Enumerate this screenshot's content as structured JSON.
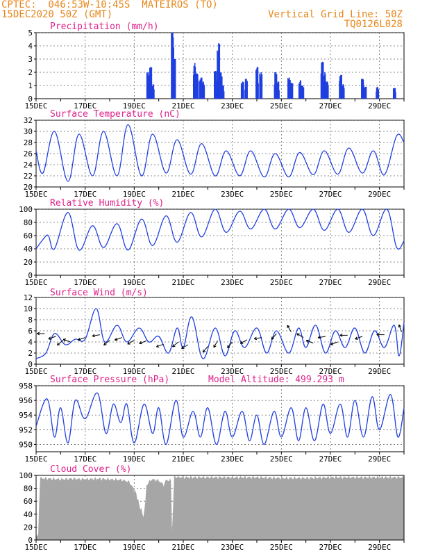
{
  "header": {
    "line1": "CPTEC:  046:53W-10:45S  MATEIROS (TO)",
    "line2": "15DEC2020 50Z (GMT)",
    "grid_note": "Vertical Grid Line: 50Z",
    "code": "TQ0126L028"
  },
  "colors": {
    "header": "#e8861a",
    "title": "#e0208a",
    "series": "#1f3fe0",
    "cloud": "#a6a6a6",
    "wind_arrow": "#000000"
  },
  "x_axis": {
    "tick_labels": [
      "15DEC",
      "17DEC",
      "19DEC",
      "21DEC",
      "23DEC",
      "25DEC",
      "27DEC",
      "29DEC"
    ],
    "range_days": [
      0,
      15
    ]
  },
  "chart_data": [
    {
      "type": "bar",
      "title": "Precipitation (mm/h)",
      "ylim": [
        0,
        5
      ],
      "yticks": [
        0,
        1,
        2,
        3,
        4,
        5
      ],
      "events": [
        {
          "day": 4.55,
          "value": 2.0
        },
        {
          "day": 4.65,
          "value": 2.4
        },
        {
          "day": 4.75,
          "value": 1.1
        },
        {
          "day": 5.55,
          "value": 5.0
        },
        {
          "day": 5.62,
          "value": 3.0
        },
        {
          "day": 6.45,
          "value": 2.7
        },
        {
          "day": 6.55,
          "value": 1.9
        },
        {
          "day": 6.7,
          "value": 1.6
        },
        {
          "day": 6.8,
          "value": 1.3
        },
        {
          "day": 7.3,
          "value": 2.1
        },
        {
          "day": 7.42,
          "value": 4.2
        },
        {
          "day": 7.52,
          "value": 2.0
        },
        {
          "day": 7.6,
          "value": 1.0
        },
        {
          "day": 8.4,
          "value": 1.3
        },
        {
          "day": 8.55,
          "value": 1.5
        },
        {
          "day": 9.0,
          "value": 2.4
        },
        {
          "day": 9.15,
          "value": 2.0
        },
        {
          "day": 9.75,
          "value": 2.0
        },
        {
          "day": 9.85,
          "value": 1.3
        },
        {
          "day": 10.3,
          "value": 1.6
        },
        {
          "day": 10.4,
          "value": 1.2
        },
        {
          "day": 10.75,
          "value": 1.4
        },
        {
          "day": 10.85,
          "value": 1.0
        },
        {
          "day": 11.65,
          "value": 2.8
        },
        {
          "day": 11.75,
          "value": 2.0
        },
        {
          "day": 11.85,
          "value": 1.3
        },
        {
          "day": 12.4,
          "value": 1.8
        },
        {
          "day": 12.5,
          "value": 1.1
        },
        {
          "day": 13.3,
          "value": 1.5
        },
        {
          "day": 13.4,
          "value": 0.9
        },
        {
          "day": 13.9,
          "value": 0.9
        },
        {
          "day": 14.6,
          "value": 0.8
        }
      ]
    },
    {
      "type": "line",
      "title": "Surface Temperature (nC)",
      "ylim": [
        20,
        32
      ],
      "yticks": [
        20,
        22,
        24,
        26,
        28,
        30,
        32
      ],
      "daily": [
        {
          "day": 0.0,
          "value": 26.5
        },
        {
          "day": 0.28,
          "value": 22.5
        },
        {
          "day": 0.75,
          "value": 30.0
        },
        {
          "day": 1.3,
          "value": 21.0
        },
        {
          "day": 1.75,
          "value": 29.5
        },
        {
          "day": 2.3,
          "value": 22.0
        },
        {
          "day": 2.75,
          "value": 30.0
        },
        {
          "day": 3.3,
          "value": 22.0
        },
        {
          "day": 3.75,
          "value": 31.2
        },
        {
          "day": 4.3,
          "value": 22.0
        },
        {
          "day": 4.75,
          "value": 29.5
        },
        {
          "day": 5.3,
          "value": 22.5
        },
        {
          "day": 5.75,
          "value": 28.5
        },
        {
          "day": 6.3,
          "value": 22.3
        },
        {
          "day": 6.75,
          "value": 27.8
        },
        {
          "day": 7.3,
          "value": 22.0
        },
        {
          "day": 7.75,
          "value": 26.5
        },
        {
          "day": 8.3,
          "value": 22.0
        },
        {
          "day": 8.75,
          "value": 26.5
        },
        {
          "day": 9.3,
          "value": 21.8
        },
        {
          "day": 9.75,
          "value": 26.0
        },
        {
          "day": 10.3,
          "value": 21.8
        },
        {
          "day": 10.75,
          "value": 26.2
        },
        {
          "day": 11.3,
          "value": 22.2
        },
        {
          "day": 11.75,
          "value": 26.5
        },
        {
          "day": 12.3,
          "value": 22.3
        },
        {
          "day": 12.75,
          "value": 27.0
        },
        {
          "day": 13.3,
          "value": 22.5
        },
        {
          "day": 13.75,
          "value": 26.5
        },
        {
          "day": 14.2,
          "value": 22.2
        },
        {
          "day": 14.7,
          "value": 29.2
        },
        {
          "day": 15.0,
          "value": 28.0
        }
      ]
    },
    {
      "type": "line",
      "title": "Relative Humidity (%)",
      "ylim": [
        0,
        100
      ],
      "yticks": [
        0,
        20,
        40,
        60,
        80,
        100
      ],
      "daily": [
        {
          "day": 0.0,
          "value": 40
        },
        {
          "day": 0.3,
          "value": 55
        },
        {
          "day": 0.5,
          "value": 60
        },
        {
          "day": 0.75,
          "value": 40
        },
        {
          "day": 1.3,
          "value": 95
        },
        {
          "day": 1.75,
          "value": 38
        },
        {
          "day": 2.3,
          "value": 75
        },
        {
          "day": 2.75,
          "value": 42
        },
        {
          "day": 3.3,
          "value": 78
        },
        {
          "day": 3.75,
          "value": 38
        },
        {
          "day": 4.3,
          "value": 85
        },
        {
          "day": 4.75,
          "value": 45
        },
        {
          "day": 5.3,
          "value": 90
        },
        {
          "day": 5.75,
          "value": 50
        },
        {
          "day": 6.3,
          "value": 95
        },
        {
          "day": 6.75,
          "value": 58
        },
        {
          "day": 7.3,
          "value": 100
        },
        {
          "day": 7.75,
          "value": 65
        },
        {
          "day": 8.3,
          "value": 97
        },
        {
          "day": 8.75,
          "value": 70
        },
        {
          "day": 9.3,
          "value": 100
        },
        {
          "day": 9.75,
          "value": 70
        },
        {
          "day": 10.3,
          "value": 100
        },
        {
          "day": 10.75,
          "value": 72
        },
        {
          "day": 11.3,
          "value": 100
        },
        {
          "day": 11.75,
          "value": 68
        },
        {
          "day": 12.3,
          "value": 100
        },
        {
          "day": 12.75,
          "value": 65
        },
        {
          "day": 13.3,
          "value": 100
        },
        {
          "day": 13.75,
          "value": 60
        },
        {
          "day": 14.3,
          "value": 100
        },
        {
          "day": 14.7,
          "value": 42
        },
        {
          "day": 15.0,
          "value": 52
        }
      ]
    },
    {
      "type": "line",
      "title": "Surface Wind (m/s)",
      "ylim": [
        0,
        12
      ],
      "yticks": [
        0,
        2,
        4,
        6,
        8,
        10,
        12
      ],
      "daily": [
        {
          "day": 0.0,
          "value": 1.0
        },
        {
          "day": 0.4,
          "value": 2.0
        },
        {
          "day": 0.75,
          "value": 5.5
        },
        {
          "day": 1.2,
          "value": 3.5
        },
        {
          "day": 1.6,
          "value": 4.5
        },
        {
          "day": 2.0,
          "value": 4.5
        },
        {
          "day": 2.45,
          "value": 10.0
        },
        {
          "day": 2.8,
          "value": 4.0
        },
        {
          "day": 3.3,
          "value": 7.0
        },
        {
          "day": 3.7,
          "value": 4.0
        },
        {
          "day": 4.2,
          "value": 6.5
        },
        {
          "day": 4.6,
          "value": 4.0
        },
        {
          "day": 5.0,
          "value": 5.0
        },
        {
          "day": 5.4,
          "value": 2.0
        },
        {
          "day": 5.75,
          "value": 6.5
        },
        {
          "day": 6.0,
          "value": 3.0
        },
        {
          "day": 6.35,
          "value": 8.5
        },
        {
          "day": 6.8,
          "value": 1.0
        },
        {
          "day": 7.3,
          "value": 6.5
        },
        {
          "day": 7.7,
          "value": 1.5
        },
        {
          "day": 8.1,
          "value": 6.0
        },
        {
          "day": 8.5,
          "value": 3.0
        },
        {
          "day": 9.0,
          "value": 6.5
        },
        {
          "day": 9.4,
          "value": 2.0
        },
        {
          "day": 9.8,
          "value": 6.0
        },
        {
          "day": 10.3,
          "value": 2.0
        },
        {
          "day": 10.7,
          "value": 6.5
        },
        {
          "day": 11.0,
          "value": 3.0
        },
        {
          "day": 11.4,
          "value": 7.0
        },
        {
          "day": 11.8,
          "value": 2.0
        },
        {
          "day": 12.2,
          "value": 6.0
        },
        {
          "day": 12.6,
          "value": 3.0
        },
        {
          "day": 13.0,
          "value": 6.5
        },
        {
          "day": 13.4,
          "value": 2.0
        },
        {
          "day": 13.8,
          "value": 6.0
        },
        {
          "day": 14.2,
          "value": 3.0
        },
        {
          "day": 14.6,
          "value": 7.0
        },
        {
          "day": 14.8,
          "value": 1.5
        },
        {
          "day": 15.0,
          "value": 7.5
        }
      ],
      "wind_vectors": [
        {
          "day": 0.35,
          "value": 5.5,
          "dir_deg": 180
        },
        {
          "day": 0.8,
          "value": 5.0,
          "dir_deg": 200
        },
        {
          "day": 1.1,
          "value": 4.3,
          "dir_deg": 220
        },
        {
          "day": 1.4,
          "value": 4.0,
          "dir_deg": 160
        },
        {
          "day": 2.0,
          "value": 4.8,
          "dir_deg": 200
        },
        {
          "day": 2.6,
          "value": 5.3,
          "dir_deg": 190
        },
        {
          "day": 3.0,
          "value": 4.3,
          "dir_deg": 220
        },
        {
          "day": 3.5,
          "value": 4.8,
          "dir_deg": 200
        },
        {
          "day": 4.0,
          "value": 4.3,
          "dir_deg": 210
        },
        {
          "day": 4.5,
          "value": 4.2,
          "dir_deg": 200
        },
        {
          "day": 5.2,
          "value": 3.6,
          "dir_deg": 200
        },
        {
          "day": 5.8,
          "value": 4.0,
          "dir_deg": 220
        },
        {
          "day": 6.2,
          "value": 3.5,
          "dir_deg": 210
        },
        {
          "day": 7.0,
          "value": 3.2,
          "dir_deg": 230
        },
        {
          "day": 7.4,
          "value": 4.2,
          "dir_deg": 240
        },
        {
          "day": 8.0,
          "value": 4.0,
          "dir_deg": 230
        },
        {
          "day": 8.6,
          "value": 4.4,
          "dir_deg": 210
        },
        {
          "day": 9.2,
          "value": 4.8,
          "dir_deg": 190
        },
        {
          "day": 9.8,
          "value": 5.5,
          "dir_deg": 230
        },
        {
          "day": 10.4,
          "value": 5.8,
          "dir_deg": 120
        },
        {
          "day": 10.9,
          "value": 4.8,
          "dir_deg": 150
        },
        {
          "day": 11.3,
          "value": 3.8,
          "dir_deg": 160
        },
        {
          "day": 11.8,
          "value": 5.0,
          "dir_deg": 190
        },
        {
          "day": 12.3,
          "value": 4.0,
          "dir_deg": 200
        },
        {
          "day": 12.7,
          "value": 5.2,
          "dir_deg": 180
        },
        {
          "day": 13.3,
          "value": 5.0,
          "dir_deg": 200
        },
        {
          "day": 14.2,
          "value": 5.3,
          "dir_deg": 180
        },
        {
          "day": 14.9,
          "value": 5.8,
          "dir_deg": 110
        }
      ]
    },
    {
      "type": "line",
      "title": "Surface Pressure (hPa)",
      "annotation": "Model Altitude: 499.293 m",
      "ylim": [
        949,
        958
      ],
      "yticks": [
        950,
        952,
        954,
        956,
        958
      ],
      "daily": [
        {
          "day": 0.0,
          "value": 952.5
        },
        {
          "day": 0.45,
          "value": 956.2
        },
        {
          "day": 0.75,
          "value": 951.0
        },
        {
          "day": 1.0,
          "value": 955.0
        },
        {
          "day": 1.3,
          "value": 950.2
        },
        {
          "day": 1.6,
          "value": 956.0
        },
        {
          "day": 2.0,
          "value": 953.5
        },
        {
          "day": 2.5,
          "value": 957.0
        },
        {
          "day": 2.85,
          "value": 951.5
        },
        {
          "day": 3.15,
          "value": 955.5
        },
        {
          "day": 3.45,
          "value": 953.0
        },
        {
          "day": 3.7,
          "value": 955.5
        },
        {
          "day": 4.0,
          "value": 950.2
        },
        {
          "day": 4.4,
          "value": 955.5
        },
        {
          "day": 4.75,
          "value": 951.5
        },
        {
          "day": 5.0,
          "value": 955.0
        },
        {
          "day": 5.3,
          "value": 950.0
        },
        {
          "day": 5.7,
          "value": 956.0
        },
        {
          "day": 6.0,
          "value": 951.0
        },
        {
          "day": 6.4,
          "value": 954.5
        },
        {
          "day": 6.7,
          "value": 951.0
        },
        {
          "day": 7.0,
          "value": 955.0
        },
        {
          "day": 7.35,
          "value": 950.0
        },
        {
          "day": 7.7,
          "value": 954.5
        },
        {
          "day": 8.0,
          "value": 951.0
        },
        {
          "day": 8.4,
          "value": 954.5
        },
        {
          "day": 8.7,
          "value": 950.5
        },
        {
          "day": 9.0,
          "value": 954.0
        },
        {
          "day": 9.3,
          "value": 950.0
        },
        {
          "day": 9.7,
          "value": 954.5
        },
        {
          "day": 10.0,
          "value": 951.0
        },
        {
          "day": 10.4,
          "value": 955.0
        },
        {
          "day": 10.7,
          "value": 950.5
        },
        {
          "day": 11.0,
          "value": 955.0
        },
        {
          "day": 11.35,
          "value": 950.5
        },
        {
          "day": 11.7,
          "value": 955.5
        },
        {
          "day": 12.0,
          "value": 951.5
        },
        {
          "day": 12.4,
          "value": 955.5
        },
        {
          "day": 12.7,
          "value": 951.0
        },
        {
          "day": 13.0,
          "value": 956.0
        },
        {
          "day": 13.35,
          "value": 951.0
        },
        {
          "day": 13.7,
          "value": 956.5
        },
        {
          "day": 14.0,
          "value": 952.0
        },
        {
          "day": 14.45,
          "value": 956.8
        },
        {
          "day": 14.75,
          "value": 951.0
        },
        {
          "day": 15.0,
          "value": 955.0
        }
      ]
    },
    {
      "type": "area",
      "title": "Cloud Cover (%)",
      "ylim": [
        0,
        100
      ],
      "yticks": [
        0,
        20,
        40,
        60,
        80,
        100
      ],
      "profile": [
        {
          "day": 0.0,
          "value": 3
        },
        {
          "day": 0.1,
          "value": 10
        },
        {
          "day": 0.15,
          "value": 96
        },
        {
          "day": 0.5,
          "value": 95
        },
        {
          "day": 1.0,
          "value": 94
        },
        {
          "day": 1.5,
          "value": 95
        },
        {
          "day": 2.0,
          "value": 94
        },
        {
          "day": 2.5,
          "value": 95
        },
        {
          "day": 3.0,
          "value": 94
        },
        {
          "day": 3.5,
          "value": 93
        },
        {
          "day": 3.8,
          "value": 90
        },
        {
          "day": 4.0,
          "value": 78
        },
        {
          "day": 4.1,
          "value": 70
        },
        {
          "day": 4.2,
          "value": 55
        },
        {
          "day": 4.3,
          "value": 45
        },
        {
          "day": 4.4,
          "value": 35
        },
        {
          "day": 4.5,
          "value": 85
        },
        {
          "day": 4.7,
          "value": 94
        },
        {
          "day": 5.0,
          "value": 92
        },
        {
          "day": 5.2,
          "value": 85
        },
        {
          "day": 5.3,
          "value": 93
        },
        {
          "day": 5.5,
          "value": 92
        },
        {
          "day": 5.55,
          "value": 2
        },
        {
          "day": 5.62,
          "value": 98
        },
        {
          "day": 6.0,
          "value": 97
        },
        {
          "day": 7.0,
          "value": 97
        },
        {
          "day": 8.0,
          "value": 97
        },
        {
          "day": 9.0,
          "value": 97
        },
        {
          "day": 10.0,
          "value": 96
        },
        {
          "day": 11.0,
          "value": 96
        },
        {
          "day": 12.0,
          "value": 97
        },
        {
          "day": 13.0,
          "value": 97
        },
        {
          "day": 14.0,
          "value": 97
        },
        {
          "day": 15.0,
          "value": 97
        }
      ]
    }
  ]
}
